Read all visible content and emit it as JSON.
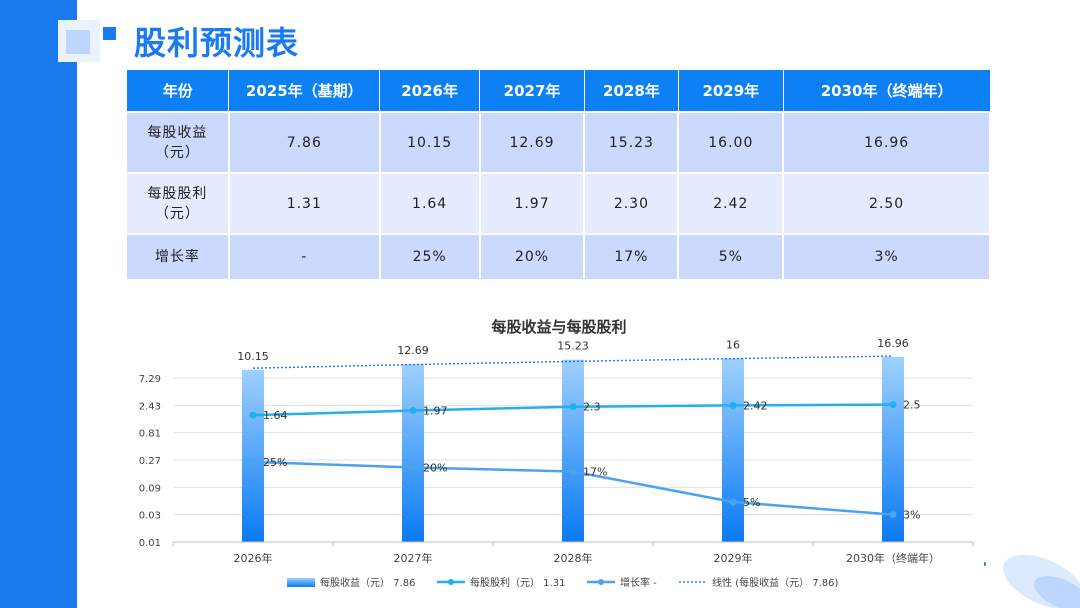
{
  "title": "股利预测表",
  "table": {
    "headers": [
      "年份",
      "2025年（基期）",
      "2026年",
      "2027年",
      "2028年",
      "2029年",
      "2030年（终端年）"
    ],
    "rows": [
      {
        "label": [
          "每股收益",
          "（元）"
        ],
        "cells": [
          "7.86",
          "10.15",
          "12.69",
          "15.23",
          "16.00",
          "16.96"
        ]
      },
      {
        "label": [
          "每股股利",
          "（元）"
        ],
        "cells": [
          "1.31",
          "1.64",
          "1.97",
          "2.30",
          "2.42",
          "2.50"
        ]
      },
      {
        "label": [
          "增长率"
        ],
        "cells": [
          "-",
          "25%",
          "20%",
          "17%",
          "5%",
          "3%"
        ]
      }
    ]
  },
  "chart_data": {
    "type": "bar",
    "title": "每股收益与每股股利",
    "categories": [
      "2026年",
      "2027年",
      "2028年",
      "2029年",
      "2030年（终端年）"
    ],
    "y_scale": "log",
    "y_ticks": [
      "0.01",
      "0.03",
      "0.09",
      "0.27",
      "0.81",
      "2.43",
      "7.29"
    ],
    "y_tick_values": [
      0.01,
      0.03,
      0.09,
      0.27,
      0.81,
      2.43,
      7.29
    ],
    "series": [
      {
        "name": "每股收益（元） 7.86",
        "type": "bar",
        "values": [
          10.15,
          12.69,
          15.23,
          16,
          16.96
        ],
        "labels": [
          "10.15",
          "12.69",
          "15.23",
          "16",
          "16.96"
        ],
        "color": "#1a80f5"
      },
      {
        "name": "每股股利（元） 1.31",
        "type": "line",
        "values": [
          1.64,
          1.97,
          2.3,
          2.42,
          2.5
        ],
        "labels": [
          "1.64",
          "1.97",
          "2.3",
          "2.42",
          "2.5"
        ],
        "color": "#22b0ec"
      },
      {
        "name": "增长率 -",
        "type": "line",
        "values": [
          0.25,
          0.2,
          0.17,
          0.05,
          0.03
        ],
        "labels": [
          "25%",
          "20%",
          "17%",
          "5%",
          "3%"
        ],
        "color": "#4aa3f0"
      },
      {
        "name": "线性 (每股收益（元） 7.86)",
        "type": "trendline",
        "values": [
          10.15,
          12.69,
          15.23,
          16,
          16.96
        ],
        "color": "#1a80f5"
      }
    ]
  }
}
